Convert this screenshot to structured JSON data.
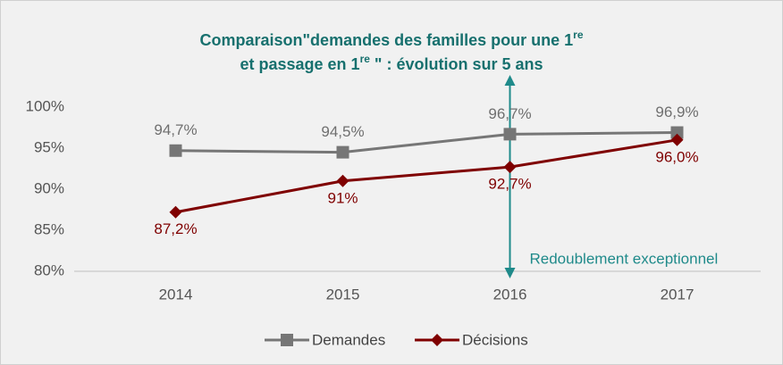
{
  "chart_data": {
    "type": "line",
    "title": [
      "Comparaison\"demandes des familles pour une 1",
      "re",
      "et passage en 1",
      "re",
      " \" : évolution sur 5 ans"
    ],
    "categories": [
      "2014",
      "2015",
      "2016",
      "2017"
    ],
    "series": [
      {
        "name": "Demandes",
        "color": "#767676",
        "marker": "square",
        "values": [
          94.7,
          94.5,
          96.7,
          96.9
        ],
        "value_labels": [
          "94,7%",
          "94,5%",
          "96,7%",
          "96,9%"
        ]
      },
      {
        "name": "Décisions",
        "color": "#7f0000",
        "marker": "diamond",
        "values": [
          87.2,
          91,
          92.7,
          96.0
        ],
        "value_labels": [
          "87,2%",
          "91%",
          "92,7%",
          "96,0%"
        ]
      }
    ],
    "ylim": [
      80,
      100
    ],
    "yticks": [
      {
        "value": 80,
        "label": "80%"
      },
      {
        "value": 85,
        "label": "85%"
      },
      {
        "value": 90,
        "label": "90%"
      },
      {
        "value": 95,
        "label": "95%"
      },
      {
        "value": 100,
        "label": "100%"
      }
    ],
    "grid": false,
    "legend": "bottom",
    "annotation": {
      "text": "Redoublement exceptionnel",
      "category": "2016",
      "color": "#1f8a8a"
    }
  }
}
